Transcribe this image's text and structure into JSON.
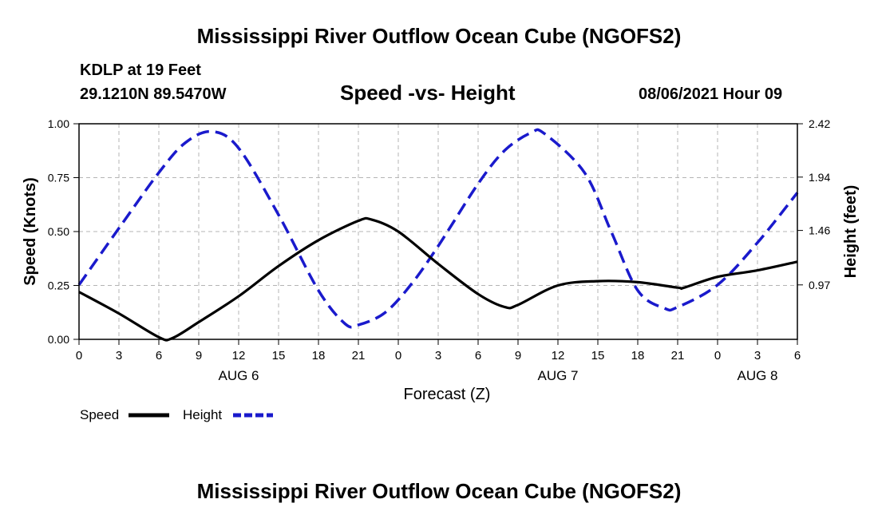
{
  "header": {
    "title": "Mississippi River Outflow Ocean Cube (NGOFS2)",
    "station": "KDLP at 19 Feet",
    "coords": "29.1210N  89.5470W",
    "subtitle": "Speed -vs- Height",
    "datetime": "08/06/2021 Hour 09"
  },
  "footer": {
    "title": "Mississippi River Outflow Ocean Cube (NGOFS2)"
  },
  "legend": {
    "speed_label": "Speed",
    "height_label": "Height"
  },
  "colors": {
    "speed": "#000000",
    "height": "#1a1acc",
    "grid": "#b4b4b4"
  },
  "chart_data": {
    "type": "line",
    "title": "Speed -vs- Height",
    "xlabel": "Forecast (Z)",
    "ylabel": "Speed (Knots)",
    "y2label": "Height (feet)",
    "xlim": [
      0,
      54
    ],
    "ylim": [
      0,
      1.0
    ],
    "y2lim": [
      0.48,
      2.42
    ],
    "grid": true,
    "legend_position": "bottom-left",
    "x_ticks": [
      0,
      3,
      6,
      9,
      12,
      15,
      18,
      21,
      24,
      27,
      30,
      33,
      36,
      39,
      42,
      45,
      48,
      51,
      54
    ],
    "x_tick_labels": [
      "0",
      "3",
      "6",
      "9",
      "12",
      "15",
      "18",
      "21",
      "0",
      "3",
      "6",
      "9",
      "12",
      "15",
      "18",
      "21",
      "0",
      "3",
      "6"
    ],
    "y_ticks": [
      0,
      0.25,
      0.5,
      0.75,
      1.0
    ],
    "y_tick_labels": [
      "0.00",
      "0.25",
      "0.50",
      "0.75",
      "1.00"
    ],
    "y2_ticks": [
      0.97,
      1.46,
      1.94,
      2.42
    ],
    "y2_tick_labels": [
      "0.97",
      "1.46",
      "1.94",
      "2.42"
    ],
    "date_labels": [
      {
        "x": 12,
        "label": "AUG 6"
      },
      {
        "x": 36,
        "label": "AUG 7"
      },
      {
        "x": 51,
        "label": "AUG 8"
      }
    ],
    "series": [
      {
        "name": "Speed",
        "axis": "left",
        "style": "solid",
        "x": [
          0,
          3,
          6,
          7,
          9,
          12,
          15,
          18,
          21,
          22,
          24,
          27,
          30,
          32,
          33,
          36,
          39,
          42,
          45,
          45.5,
          48,
          51,
          54
        ],
        "values": [
          0.22,
          0.12,
          0.01,
          0.005,
          0.08,
          0.2,
          0.34,
          0.46,
          0.55,
          0.555,
          0.5,
          0.35,
          0.21,
          0.15,
          0.16,
          0.25,
          0.27,
          0.265,
          0.24,
          0.24,
          0.29,
          0.32,
          0.36
        ]
      },
      {
        "name": "Height",
        "axis": "right",
        "style": "dashed",
        "x": [
          0,
          3,
          6,
          8,
          10,
          12,
          15,
          18,
          20,
          21,
          23,
          25,
          27,
          30,
          32,
          34,
          35,
          38,
          40,
          42,
          44,
          45,
          48,
          51,
          54
        ],
        "values": [
          0.97,
          1.48,
          1.98,
          2.25,
          2.35,
          2.2,
          1.6,
          0.92,
          0.62,
          0.61,
          0.72,
          0.98,
          1.32,
          1.88,
          2.18,
          2.34,
          2.33,
          1.98,
          1.45,
          0.92,
          0.76,
          0.77,
          0.97,
          1.35,
          1.8
        ]
      }
    ]
  }
}
